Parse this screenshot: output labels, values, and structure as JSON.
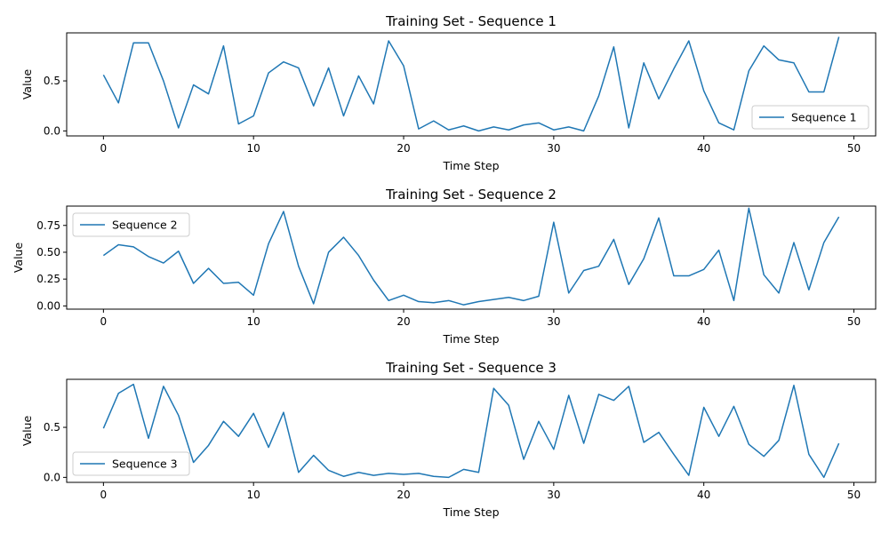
{
  "colors": {
    "line": "#1f77b4",
    "axes": "#000000",
    "legend_border": "#cccccc"
  },
  "chart_data": [
    {
      "type": "line",
      "title": "Training Set - Sequence 1",
      "xlabel": "Time Step",
      "ylabel": "Value",
      "xlim": [
        -2.45,
        51.45
      ],
      "ylim": [
        -0.05,
        0.98
      ],
      "xticks": [
        0,
        10,
        20,
        30,
        40,
        50
      ],
      "yticks": [
        0.0,
        0.5
      ],
      "ytick_labels": [
        "0.0",
        "0.5"
      ],
      "grid": false,
      "legend": "lower-right",
      "series": [
        {
          "name": "Sequence 1",
          "x": [
            0,
            1,
            2,
            3,
            4,
            5,
            6,
            7,
            8,
            9,
            10,
            11,
            12,
            13,
            14,
            15,
            16,
            17,
            18,
            19,
            20,
            21,
            22,
            23,
            24,
            25,
            26,
            27,
            28,
            29,
            30,
            31,
            32,
            33,
            34,
            35,
            36,
            37,
            38,
            39,
            40,
            41,
            42,
            43,
            44,
            45,
            46,
            47,
            48,
            49
          ],
          "y": [
            0.56,
            0.28,
            0.88,
            0.88,
            0.5,
            0.03,
            0.46,
            0.37,
            0.85,
            0.07,
            0.15,
            0.58,
            0.69,
            0.63,
            0.25,
            0.63,
            0.15,
            0.55,
            0.27,
            0.9,
            0.65,
            0.02,
            0.1,
            0.01,
            0.05,
            0.0,
            0.04,
            0.01,
            0.06,
            0.08,
            0.01,
            0.04,
            0.0,
            0.35,
            0.84,
            0.03,
            0.68,
            0.32,
            0.62,
            0.9,
            0.4,
            0.08,
            0.01,
            0.6,
            0.85,
            0.71,
            0.68,
            0.39,
            0.39,
            0.94
          ]
        }
      ]
    },
    {
      "type": "line",
      "title": "Training Set - Sequence 2",
      "xlabel": "Time Step",
      "ylabel": "Value",
      "xlim": [
        -2.45,
        51.45
      ],
      "ylim": [
        -0.03,
        0.93
      ],
      "xticks": [
        0,
        10,
        20,
        30,
        40,
        50
      ],
      "yticks": [
        0.0,
        0.25,
        0.5,
        0.75
      ],
      "ytick_labels": [
        "0.00",
        "0.25",
        "0.50",
        "0.75"
      ],
      "grid": false,
      "legend": "upper-left",
      "series": [
        {
          "name": "Sequence 2",
          "x": [
            0,
            1,
            2,
            3,
            4,
            5,
            6,
            7,
            8,
            9,
            10,
            11,
            12,
            13,
            14,
            15,
            16,
            17,
            18,
            19,
            20,
            21,
            22,
            23,
            24,
            25,
            26,
            27,
            28,
            29,
            30,
            31,
            32,
            33,
            34,
            35,
            36,
            37,
            38,
            39,
            40,
            41,
            42,
            43,
            44,
            45,
            46,
            47,
            48,
            49
          ],
          "y": [
            0.47,
            0.57,
            0.55,
            0.46,
            0.4,
            0.51,
            0.21,
            0.35,
            0.21,
            0.22,
            0.1,
            0.58,
            0.88,
            0.37,
            0.02,
            0.5,
            0.64,
            0.47,
            0.24,
            0.05,
            0.1,
            0.04,
            0.03,
            0.05,
            0.01,
            0.04,
            0.06,
            0.08,
            0.05,
            0.09,
            0.78,
            0.12,
            0.33,
            0.37,
            0.62,
            0.2,
            0.44,
            0.82,
            0.28,
            0.28,
            0.34,
            0.52,
            0.05,
            0.91,
            0.29,
            0.12,
            0.59,
            0.15,
            0.59,
            0.83
          ]
        }
      ]
    },
    {
      "type": "line",
      "title": "Training Set - Sequence 3",
      "xlabel": "Time Step",
      "ylabel": "Value",
      "xlim": [
        -2.45,
        51.45
      ],
      "ylim": [
        -0.05,
        0.98
      ],
      "xticks": [
        0,
        10,
        20,
        30,
        40,
        50
      ],
      "yticks": [
        0.0,
        0.5
      ],
      "ytick_labels": [
        "0.0",
        "0.5"
      ],
      "grid": false,
      "legend": "lower-left",
      "series": [
        {
          "name": "Sequence 3",
          "x": [
            0,
            1,
            2,
            3,
            4,
            5,
            6,
            7,
            8,
            9,
            10,
            11,
            12,
            13,
            14,
            15,
            16,
            17,
            18,
            19,
            20,
            21,
            22,
            23,
            24,
            25,
            26,
            27,
            28,
            29,
            30,
            31,
            32,
            33,
            34,
            35,
            36,
            37,
            38,
            39,
            40,
            41,
            42,
            43,
            44,
            45,
            46,
            47,
            48,
            49
          ],
          "y": [
            0.49,
            0.84,
            0.93,
            0.39,
            0.91,
            0.62,
            0.15,
            0.32,
            0.56,
            0.41,
            0.64,
            0.3,
            0.65,
            0.05,
            0.22,
            0.07,
            0.01,
            0.05,
            0.02,
            0.04,
            0.03,
            0.04,
            0.01,
            0.0,
            0.08,
            0.05,
            0.89,
            0.72,
            0.18,
            0.56,
            0.28,
            0.82,
            0.34,
            0.83,
            0.77,
            0.91,
            0.35,
            0.45,
            0.23,
            0.02,
            0.7,
            0.41,
            0.71,
            0.33,
            0.21,
            0.37,
            0.92,
            0.23,
            0.0,
            0.34
          ]
        }
      ]
    }
  ]
}
